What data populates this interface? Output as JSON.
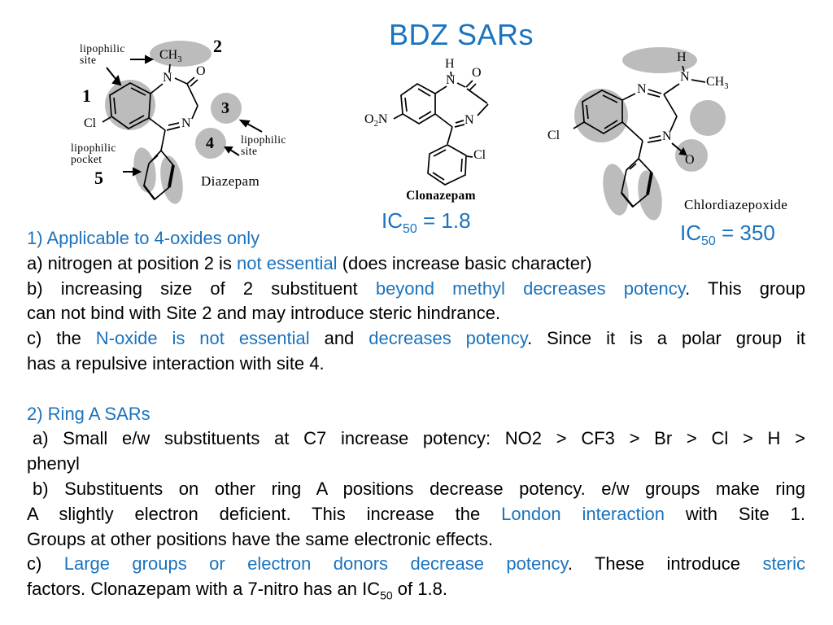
{
  "title": "BDZ SARs",
  "colors": {
    "blue": "#1b73be",
    "gray": "#bcbcbc",
    "black": "#000000"
  },
  "diazepam": {
    "name": "Diazepam",
    "num1": "1",
    "num2": "2",
    "num3": "3",
    "num4": "4",
    "num5": "5",
    "ch3": "CH",
    "ch3s": "3",
    "n_top": "N",
    "o": "O",
    "n_ring": "N",
    "cl": "Cl",
    "site_top1": "lipophilic",
    "site_top2": "site",
    "pocket1": "lipophilic",
    "pocket2": "pocket",
    "site_right1": "lipophilic",
    "site_right2": "site"
  },
  "clonazepam": {
    "name": "Clonazepam",
    "h": "H",
    "n_top": "N",
    "o": "O",
    "n_ring": "N",
    "cl": "Cl",
    "no2_o": "O",
    "no2_s": "2",
    "no2_n": "N",
    "ic": "IC",
    "ic_sub": "50",
    "ic_val": " = 1.8"
  },
  "chlordiazepoxide": {
    "name": "Chlordiazepoxide",
    "h": "H",
    "n_amine": "N",
    "ch3": "CH",
    "ch3s": "3",
    "n_top": "N",
    "n_ring": "N",
    "o": "O",
    "cl": "Cl",
    "ic": "IC",
    "ic_sub": "50",
    "ic_val": " = 350"
  },
  "body": {
    "lines": [
      {
        "seg": [
          {
            "t": "1) Applicable to 4-oxides only",
            "c": "blue"
          }
        ]
      },
      {
        "seg": [
          {
            "t": "a) nitrogen at position 2 is ",
            "c": "k"
          },
          {
            "t": "not essential",
            "c": "blue"
          },
          {
            "t": " (does increase basic character)",
            "c": "k"
          }
        ]
      },
      {
        "j": true,
        "seg": [
          {
            "t": "b) increasing size of 2 substituent ",
            "c": "k"
          },
          {
            "t": "beyond methyl decreases potency",
            "c": "blue"
          },
          {
            "t": ". This group",
            "c": "k"
          }
        ]
      },
      {
        "seg": [
          {
            "t": "can not bind with Site 2 and may introduce steric hindrance.",
            "c": "k"
          }
        ]
      },
      {
        "j": true,
        "seg": [
          {
            "t": "c) the ",
            "c": "k"
          },
          {
            "t": "N-oxide is not essential",
            "c": "blue"
          },
          {
            "t": " and ",
            "c": "k"
          },
          {
            "t": "decreases potency",
            "c": "blue"
          },
          {
            "t": ". Since it is a polar group it",
            "c": "k"
          }
        ]
      },
      {
        "seg": [
          {
            "t": "has a repulsive interaction with site 4.",
            "c": "k"
          }
        ]
      },
      {
        "gap": true,
        "seg": [
          {
            "t": "2) Ring A SARs",
            "c": "blue"
          }
        ]
      },
      {
        "j": true,
        "ind": true,
        "seg": [
          {
            "t": "a) Small e/w substituents at C7 increase potency: NO2 > CF3 > Br > Cl > H >",
            "c": "k"
          }
        ]
      },
      {
        "seg": [
          {
            "t": "phenyl",
            "c": "k"
          }
        ]
      },
      {
        "j": true,
        "ind": true,
        "seg": [
          {
            "t": "b) Substituents on other ring A positions decrease potency. e/w groups make ring",
            "c": "k"
          }
        ]
      },
      {
        "j": true,
        "seg": [
          {
            "t": "A slightly electron deficient. This increase the ",
            "c": "k"
          },
          {
            "t": "London interaction",
            "c": "blue"
          },
          {
            "t": " with Site 1.",
            "c": "k"
          }
        ]
      },
      {
        "seg": [
          {
            "t": "Groups at other positions have the same electronic effects.",
            "c": "k"
          }
        ]
      },
      {
        "j": true,
        "seg": [
          {
            "t": "c) ",
            "c": "k"
          },
          {
            "t": "Large groups or electron donors decrease potency",
            "c": "blue"
          },
          {
            "t": ". These introduce ",
            "c": "k"
          },
          {
            "t": "steric",
            "c": "blue"
          }
        ]
      },
      {
        "seg": [
          {
            "t": "factors. Clonazepam with a 7-nitro has an IC",
            "c": "k"
          },
          {
            "t": "50",
            "c": "k",
            "sub": true
          },
          {
            "t": " of 1.8.",
            "c": "k"
          }
        ]
      }
    ]
  }
}
